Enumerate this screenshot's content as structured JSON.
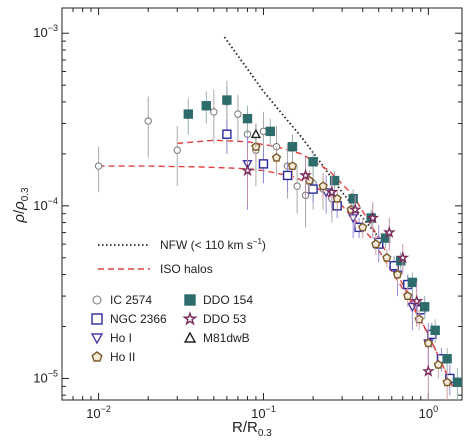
{
  "chart_data": {
    "type": "scatter",
    "x_scale": "log",
    "y_scale": "log",
    "xlim": [
      0.006,
      1.6
    ],
    "ylim": [
      7.5e-06,
      0.0014
    ],
    "xlabel": "R/R",
    "xlabel_sub": "0.3",
    "ylabel_rho": "ρ",
    "ylabel_sep": "/",
    "ylabel_rho2": "ρ",
    "ylabel_sub": "0.3",
    "x_ticks": [
      {
        "value": 0.01,
        "base": "10",
        "exp": "−2"
      },
      {
        "value": 0.1,
        "base": "10",
        "exp": "−1"
      },
      {
        "value": 1,
        "base": "10",
        "exp": "0"
      }
    ],
    "y_ticks": [
      {
        "value": 1e-05,
        "base": "10",
        "exp": "−5"
      },
      {
        "value": 0.0001,
        "base": "10",
        "exp": "−4"
      },
      {
        "value": 0.001,
        "base": "10",
        "exp": "−3"
      }
    ],
    "line_legend": [
      {
        "label": "NFW (< 110 km s",
        "sup": "−1",
        "tail": ")",
        "style": "dotted",
        "color": "#222222"
      },
      {
        "label": "ISO halos",
        "style": "dashed",
        "color": "#e04040"
      }
    ],
    "marker_legend": [
      {
        "label": "IC 2574",
        "marker": "circle",
        "color": "#777777"
      },
      {
        "label": "NGC 2366",
        "marker": "square-open",
        "color": "#2a2aa0"
      },
      {
        "label": "Ho I",
        "marker": "triangle-down",
        "color": "#4a3aa8"
      },
      {
        "label": "Ho II",
        "marker": "pentagon",
        "color": "#7a5a2a"
      },
      {
        "label": "DDO 154",
        "marker": "square-filled",
        "color": "#2e6b6b"
      },
      {
        "label": "DDO 53",
        "marker": "star",
        "color": "#7a2a5a"
      },
      {
        "label": "M81dwB",
        "marker": "triangle-up",
        "color": "#222222"
      }
    ],
    "model_lines": [
      {
        "name": "NFW (< 110 km s−1)",
        "style": "dotted",
        "color": "#222222",
        "x": [
          0.058,
          0.08,
          0.1,
          0.13,
          0.17,
          0.22,
          0.3,
          0.4,
          0.52
        ],
        "y": [
          0.00095,
          0.00062,
          0.00046,
          0.00034,
          0.00025,
          0.00018,
          0.00012,
          8.5e-05,
          6.3e-05
        ]
      },
      {
        "name": "ISO halo 1",
        "style": "dashed",
        "color": "#e04040",
        "x": [
          0.03,
          0.05,
          0.08,
          0.12,
          0.17,
          0.25,
          0.35,
          0.5,
          0.7,
          1.0,
          1.4
        ],
        "y": [
          0.00023,
          0.00024,
          0.000235,
          0.00022,
          0.0002,
          0.00016,
          0.000115,
          6.5e-05,
          3.5e-05,
          1.8e-05,
          9e-06
        ]
      },
      {
        "name": "ISO halo 2",
        "style": "dashed",
        "color": "#e04040",
        "x": [
          0.01,
          0.02,
          0.04,
          0.07,
          0.1,
          0.15,
          0.2,
          0.3,
          0.45,
          0.7,
          1.0,
          1.4
        ],
        "y": [
          0.00017,
          0.00017,
          0.000168,
          0.000165,
          0.00016,
          0.000148,
          0.000132,
          0.0001,
          6.5e-05,
          3.3e-05,
          1.8e-05,
          9e-06
        ]
      }
    ],
    "series": [
      {
        "name": "IC 2574",
        "marker": "circle",
        "color": "#777777",
        "x": [
          0.01,
          0.02,
          0.03,
          0.05,
          0.06,
          0.07,
          0.08,
          0.09,
          0.1,
          0.12,
          0.14,
          0.16,
          0.18,
          0.2,
          0.23,
          0.26
        ],
        "y": [
          0.00017,
          0.00031,
          0.00021,
          0.00035,
          0.0004,
          0.00034,
          0.00026,
          0.00021,
          0.00027,
          0.00022,
          0.00017,
          0.00013,
          0.000115,
          0.000135,
          0.000125,
          0.00011
        ],
        "err": [
          5e-05,
          0.00012,
          8e-05,
          0.00012,
          0.00013,
          0.0001,
          8e-05,
          8e-05,
          8e-05,
          7e-05,
          6e-05,
          4e-05,
          4e-05,
          4e-05,
          3e-05,
          3e-05
        ]
      },
      {
        "name": "NGC 2366",
        "marker": "square-open",
        "color": "#2a2aa0",
        "x": [
          0.06,
          0.1,
          0.14,
          0.2,
          0.28,
          0.38,
          0.5,
          0.62,
          0.75,
          0.9,
          1.05,
          1.2,
          1.35
        ],
        "y": [
          0.00026,
          0.000175,
          0.00015,
          0.000125,
          0.0001,
          7.5e-05,
          6e-05,
          4.5e-05,
          3.5e-05,
          2.5e-05,
          1.8e-05,
          1.3e-05,
          1e-05
        ],
        "err": [
          6e-05,
          4e-05,
          3e-05,
          2e-05,
          1.5e-05,
          1e-05,
          8e-06,
          6e-06,
          5e-06,
          4e-06,
          3e-06,
          2e-06,
          2e-06
        ]
      },
      {
        "name": "Ho I",
        "marker": "triangle-down",
        "color": "#4a3aa8",
        "x": [
          0.08,
          0.24,
          0.35,
          0.5,
          0.65,
          0.8,
          1.0
        ],
        "y": [
          0.000175,
          0.00012,
          8.5e-05,
          6.2e-05,
          4e-05,
          2.6e-05,
          1.6e-05
        ],
        "err": [
          8e-05,
          3e-05,
          2e-05,
          1.5e-05,
          1e-05,
          7e-06,
          5e-06
        ]
      },
      {
        "name": "Ho II",
        "marker": "pentagon",
        "color": "#7a5a2a",
        "x": [
          0.09,
          0.12,
          0.15,
          0.19,
          0.23,
          0.28,
          0.34,
          0.4,
          0.48,
          0.56,
          0.65,
          0.75,
          0.88,
          1.0,
          1.15,
          1.3
        ],
        "y": [
          0.00022,
          0.00019,
          0.00017,
          0.00014,
          0.00013,
          0.00011,
          9.5e-05,
          7.5e-05,
          6e-05,
          5e-05,
          4e-05,
          3e-05,
          2.2e-05,
          1.6e-05,
          1.2e-05,
          9.5e-06
        ],
        "err": [
          4e-05,
          3e-05,
          3e-05,
          2e-05,
          2e-05,
          1.5e-05,
          1.2e-05,
          1e-05,
          8e-06,
          6e-06,
          5e-06,
          4e-06,
          3e-06,
          3e-06,
          2e-06,
          2e-06
        ]
      },
      {
        "name": "DDO 154",
        "marker": "square-filled",
        "color": "#2e6b6b",
        "x": [
          0.035,
          0.045,
          0.06,
          0.08,
          0.11,
          0.15,
          0.2,
          0.27,
          0.35,
          0.45,
          0.55,
          0.68,
          0.8,
          0.95,
          1.1,
          1.3,
          1.5
        ],
        "y": [
          0.00034,
          0.00038,
          0.00041,
          0.00032,
          0.00027,
          0.00022,
          0.00018,
          0.00014,
          0.00011,
          8.5e-05,
          6.5e-05,
          4.8e-05,
          3.6e-05,
          2.6e-05,
          1.9e-05,
          1.3e-05,
          9.5e-06
        ],
        "err": [
          8e-05,
          8e-05,
          8e-05,
          6e-05,
          5e-05,
          4e-05,
          3e-05,
          2e-05,
          1.5e-05,
          1e-05,
          8e-06,
          6e-06,
          5e-06,
          4e-06,
          3e-06,
          2e-06,
          2e-06
        ]
      },
      {
        "name": "DDO 53",
        "marker": "star",
        "color": "#7a2a5a",
        "x": [
          0.08,
          0.18,
          0.26,
          0.36,
          0.46,
          0.58,
          0.7,
          0.85,
          1.0
        ],
        "y": [
          0.00016,
          0.00015,
          0.00012,
          9.5e-05,
          8.5e-05,
          7e-05,
          5e-05,
          2.8e-05,
          1.1e-05
        ],
        "err": [
          6e-05,
          4e-05,
          3e-05,
          2e-05,
          2e-05,
          1.5e-05,
          1e-05,
          8e-06,
          4e-06
        ]
      },
      {
        "name": "M81dwB",
        "marker": "triangle-up",
        "color": "#222222",
        "x": [
          0.09
        ],
        "y": [
          0.00026
        ],
        "err": [
          4e-05
        ]
      }
    ]
  }
}
